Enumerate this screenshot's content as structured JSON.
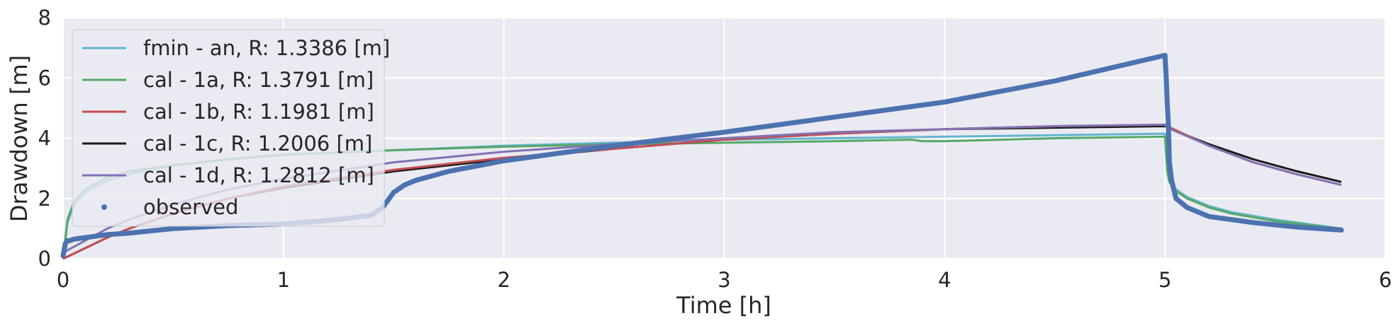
{
  "chart_data": {
    "type": "line",
    "title": "",
    "xlabel": "Time [h]",
    "ylabel": "Drawdown [m]",
    "xlim": [
      0,
      6
    ],
    "ylim": [
      0,
      8
    ],
    "xticks": [
      "0",
      "1",
      "2",
      "3",
      "4",
      "5",
      "6"
    ],
    "yticks": [
      "0",
      "2",
      "4",
      "6",
      "8"
    ],
    "grid": true,
    "legend_position": "top-left",
    "background": "#EAEAF2",
    "series": [
      {
        "name": "fmin - an, R: 1.3386 [m]",
        "color": "#64B5CD",
        "style": "line",
        "x": [
          0,
          0.02,
          0.05,
          0.1,
          0.2,
          0.3,
          0.5,
          0.75,
          1,
          1.5,
          2,
          2.5,
          3,
          3.5,
          4,
          4.5,
          5.0,
          5.01,
          5.02,
          5.05,
          5.1,
          5.2,
          5.3,
          5.5,
          5.8
        ],
        "y": [
          0,
          1.2,
          1.8,
          2.2,
          2.6,
          2.8,
          3.1,
          3.3,
          3.45,
          3.6,
          3.75,
          3.85,
          3.95,
          4.0,
          4.05,
          4.1,
          4.15,
          3.0,
          2.6,
          2.3,
          2.05,
          1.75,
          1.55,
          1.3,
          1.0
        ]
      },
      {
        "name": "cal - 1a, R: 1.3791 [m]",
        "color": "#55A868",
        "style": "line",
        "x": [
          0,
          0.02,
          0.05,
          0.1,
          0.2,
          0.3,
          0.5,
          0.75,
          1,
          1.5,
          2,
          2.5,
          3,
          3.5,
          3.85,
          3.9,
          4,
          4.5,
          5.0,
          5.01,
          5.02,
          5.05,
          5.1,
          5.2,
          5.3,
          5.5,
          5.8
        ],
        "y": [
          0,
          1.3,
          1.9,
          2.3,
          2.7,
          2.9,
          3.1,
          3.3,
          3.45,
          3.6,
          3.72,
          3.8,
          3.85,
          3.9,
          3.95,
          3.9,
          3.9,
          4.0,
          4.05,
          2.9,
          2.55,
          2.25,
          2.0,
          1.7,
          1.5,
          1.25,
          1.0
        ]
      },
      {
        "name": "cal - 1b, R: 1.1981 [m]",
        "color": "#C44E52",
        "style": "line",
        "x": [
          0,
          0.1,
          0.2,
          0.3,
          0.5,
          0.75,
          1,
          1.5,
          2,
          2.5,
          3,
          3.5,
          4,
          4.5,
          5.0,
          5.01,
          5.2,
          5.4,
          5.6,
          5.8
        ],
        "y": [
          0,
          0.35,
          0.7,
          1.0,
          1.5,
          2.0,
          2.4,
          2.95,
          3.35,
          3.65,
          3.95,
          4.15,
          4.3,
          4.4,
          4.45,
          4.4,
          3.75,
          3.2,
          2.8,
          2.45
        ]
      },
      {
        "name": "cal - 1c, R: 1.2006 [m]",
        "color": "#1A1A1A",
        "style": "line",
        "x": [
          0,
          0.1,
          0.2,
          0.3,
          0.5,
          0.75,
          1,
          1.5,
          2,
          2.5,
          3,
          3.5,
          4,
          4.5,
          5.0,
          5.01,
          5.2,
          5.4,
          5.6,
          5.8
        ],
        "y": [
          0,
          0.35,
          0.7,
          1.0,
          1.5,
          2.0,
          2.35,
          2.9,
          3.3,
          3.65,
          3.95,
          4.15,
          4.3,
          4.35,
          4.4,
          4.35,
          3.8,
          3.3,
          2.9,
          2.55
        ]
      },
      {
        "name": "cal - 1d, R: 1.2812 [m]",
        "color": "#8172B2",
        "style": "line",
        "x": [
          0,
          0.1,
          0.2,
          0.3,
          0.5,
          0.75,
          1,
          1.5,
          2,
          2.5,
          3,
          3.5,
          4,
          4.5,
          5.0,
          5.01,
          5.2,
          5.4,
          5.6,
          5.8
        ],
        "y": [
          0.2,
          0.6,
          1.0,
          1.3,
          1.8,
          2.3,
          2.65,
          3.2,
          3.55,
          3.8,
          4.0,
          4.2,
          4.3,
          4.4,
          4.45,
          4.35,
          3.75,
          3.2,
          2.8,
          2.45
        ]
      },
      {
        "name": "observed",
        "color": "#4C72B0",
        "style": "points",
        "x": [
          0,
          0.01,
          0.02,
          0.03,
          0.05,
          0.1,
          0.2,
          0.3,
          0.5,
          0.75,
          1.0,
          1.25,
          1.4,
          1.45,
          1.5,
          1.55,
          1.6,
          1.75,
          2.0,
          2.5,
          3.0,
          3.5,
          4.0,
          4.5,
          5.0,
          5.005,
          5.01,
          5.015,
          5.02,
          5.03,
          5.05,
          5.1,
          5.2,
          5.4,
          5.6,
          5.8
        ],
        "y": [
          0.1,
          0.5,
          0.6,
          0.6,
          0.65,
          0.7,
          0.8,
          0.85,
          1.0,
          1.1,
          1.15,
          1.3,
          1.45,
          1.7,
          2.2,
          2.45,
          2.6,
          2.9,
          3.25,
          3.75,
          4.2,
          4.7,
          5.2,
          5.9,
          6.75,
          6.1,
          5.2,
          4.5,
          3.2,
          2.6,
          2.0,
          1.7,
          1.4,
          1.2,
          1.05,
          0.95
        ]
      }
    ]
  }
}
